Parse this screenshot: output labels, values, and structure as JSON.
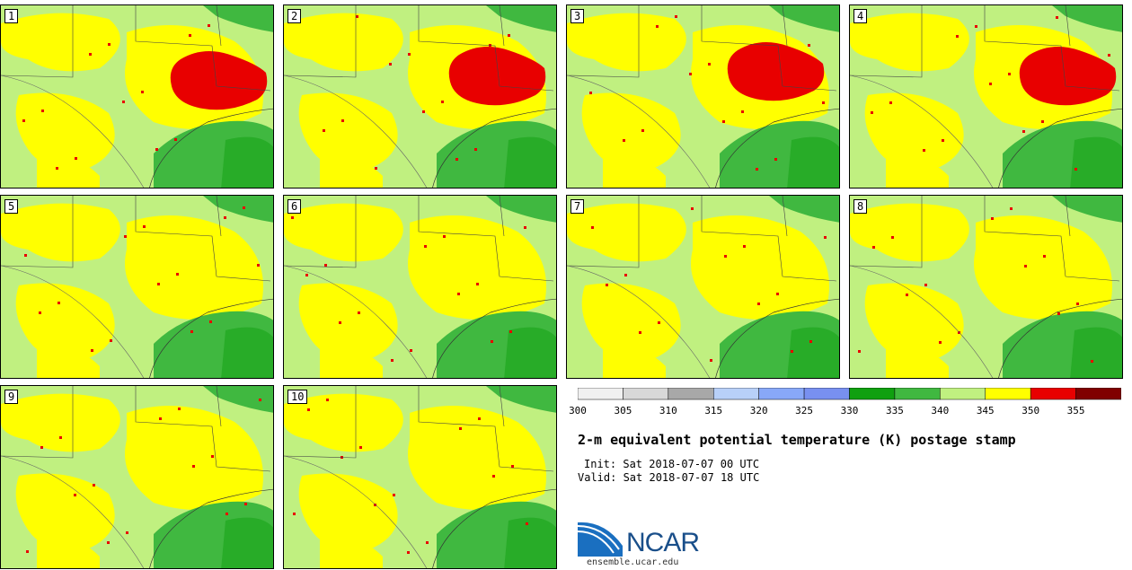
{
  "panels": [
    {
      "label": "1"
    },
    {
      "label": "2"
    },
    {
      "label": "3"
    },
    {
      "label": "4"
    },
    {
      "label": "5"
    },
    {
      "label": "6"
    },
    {
      "label": "7"
    },
    {
      "label": "8"
    },
    {
      "label": "9"
    },
    {
      "label": "10"
    }
  ],
  "colorbar": {
    "ticks": [
      "300",
      "305",
      "310",
      "315",
      "320",
      "325",
      "330",
      "335",
      "340",
      "345",
      "350",
      "355"
    ],
    "colors": [
      "#f0f0f0",
      "#d8d8d8",
      "#a8a8a8",
      "#b8d0f8",
      "#88a8f8",
      "#7890f0",
      "#10a010",
      "#40b840",
      "#c0f080",
      "#ffff00",
      "#e80000",
      "#800000"
    ]
  },
  "title": "2-m equivalent potential temperature (K) postage stamp",
  "init": "Init: Sat 2018-07-07 00 UTC",
  "valid": "Valid: Sat 2018-07-07 18 UTC",
  "logo": {
    "text": "NCAR",
    "url": "ensemble.ucar.edu"
  }
}
